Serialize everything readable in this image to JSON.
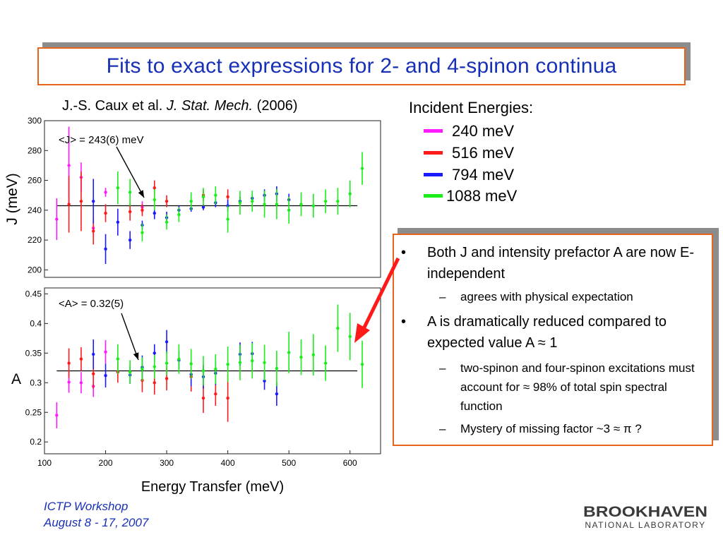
{
  "slide": {
    "title": "Fits to exact expressions for 2- and 4-spinon continua",
    "citation_authors": "J.-S. Caux et al.",
    "citation_journal": "J. Stat. Mech.",
    "citation_year": "(2006)",
    "footer_line1": "ICTP Workshop",
    "footer_line2": "August 8 - 17, 2007",
    "logo_top": "BROOKHAVEN",
    "logo_bottom": "NATIONAL LABORATORY"
  },
  "legend": {
    "title": "Incident Energies:",
    "items": [
      {
        "label": "240 meV",
        "color": "#ff19ff"
      },
      {
        "label": "516 meV",
        "color": "#ff1a1a"
      },
      {
        "label": "794 meV",
        "color": "#1a1aff"
      },
      {
        "label": "1088 meV",
        "color": "#19ee19"
      }
    ]
  },
  "bullets": [
    {
      "text": "Both J and intensity prefactor A are now E-independent",
      "sub": [
        "agrees with physical expectation"
      ]
    },
    {
      "text": "A is dramatically reduced compared to expected value A ≈ 1",
      "sub": [
        "two-spinon and four-spinon excitations must account for ≈ 98% of total spin spectral function",
        "Mystery of missing factor ~3 ≈ π ?"
      ]
    }
  ],
  "bullet_char": "•",
  "sub_char": "–",
  "chart_data": [
    {
      "type": "scatter",
      "title": "",
      "xlabel": "",
      "ylabel": "J (meV)",
      "xlim": [
        100,
        650
      ],
      "ylim": [
        195,
        300
      ],
      "yticks": [
        200,
        220,
        240,
        260,
        280,
        300
      ],
      "ytick_labels": [
        "200",
        "220",
        "240",
        "260",
        "280",
        "300"
      ],
      "fit_line": 243,
      "annotation": "<J> = 243(6) meV",
      "series": [
        {
          "color": "#ff19ff",
          "points": [
            [
              120,
              234,
              14
            ],
            [
              140,
              270,
              26
            ],
            [
              160,
              262,
              10
            ],
            [
              180,
              228,
              5
            ],
            [
              200,
              252,
              3
            ],
            [
              260,
              242,
              4
            ]
          ]
        },
        {
          "color": "#ff1a1a",
          "points": [
            [
              140,
              244,
              19
            ],
            [
              160,
              246,
              20
            ],
            [
              180,
              226,
              9
            ],
            [
              200,
              238,
              6
            ],
            [
              240,
              239,
              6
            ],
            [
              260,
              240,
              4
            ],
            [
              280,
              255,
              5
            ],
            [
              300,
              246,
              4
            ],
            [
              360,
              250,
              4
            ],
            [
              400,
              249,
              5
            ]
          ]
        },
        {
          "color": "#1a1aff",
          "points": [
            [
              180,
              246,
              15
            ],
            [
              200,
              214,
              10
            ],
            [
              220,
              232,
              9
            ],
            [
              240,
              220,
              6
            ],
            [
              260,
              230,
              3
            ],
            [
              280,
              238,
              4
            ],
            [
              300,
              235,
              4
            ],
            [
              320,
              240,
              3
            ],
            [
              340,
              241,
              2
            ],
            [
              360,
              242,
              2
            ],
            [
              380,
              245,
              3
            ],
            [
              400,
              243,
              4
            ],
            [
              420,
              246,
              3
            ],
            [
              440,
              248,
              3
            ],
            [
              460,
              250,
              4
            ],
            [
              480,
              251,
              5
            ],
            [
              500,
              247,
              4
            ]
          ]
        },
        {
          "color": "#19ee19",
          "points": [
            [
              220,
              255,
              11
            ],
            [
              240,
              252,
              9
            ],
            [
              260,
              225,
              6
            ],
            [
              280,
              247,
              7
            ],
            [
              300,
              232,
              5
            ],
            [
              320,
              237,
              5
            ],
            [
              340,
              246,
              6
            ],
            [
              360,
              249,
              6
            ],
            [
              380,
              250,
              6
            ],
            [
              400,
              234,
              9
            ],
            [
              420,
              245,
              8
            ],
            [
              440,
              246,
              7
            ],
            [
              460,
              244,
              9
            ],
            [
              480,
              244,
              10
            ],
            [
              500,
              240,
              9
            ],
            [
              520,
              244,
              8
            ],
            [
              540,
              243,
              8
            ],
            [
              560,
              246,
              8
            ],
            [
              580,
              246,
              9
            ],
            [
              600,
              251,
              9
            ],
            [
              620,
              268,
              11
            ]
          ]
        }
      ]
    },
    {
      "type": "scatter",
      "title": "",
      "xlabel": "Energy Transfer (meV)",
      "ylabel": "A",
      "xlim": [
        100,
        650
      ],
      "ylim": [
        0.18,
        0.46
      ],
      "xticks": [
        100,
        200,
        300,
        400,
        500,
        600
      ],
      "xtick_labels": [
        "100",
        "200",
        "300",
        "400",
        "500",
        "600"
      ],
      "yticks": [
        0.2,
        0.25,
        0.3,
        0.35,
        0.4,
        0.45
      ],
      "ytick_labels": [
        "0.2",
        "0.25",
        "0.3",
        "0.35",
        "0.4",
        "0.45"
      ],
      "fit_line": 0.32,
      "annotation": "<A> = 0.32(5)",
      "series": [
        {
          "color": "#ff19ff",
          "points": [
            [
              120,
              0.245,
              0.022
            ],
            [
              140,
              0.301,
              0.018
            ],
            [
              160,
              0.3,
              0.018
            ],
            [
              180,
              0.294,
              0.018
            ],
            [
              200,
              0.352,
              0.02
            ]
          ]
        },
        {
          "color": "#ff1a1a",
          "points": [
            [
              140,
              0.333,
              0.025
            ],
            [
              160,
              0.34,
              0.02
            ],
            [
              180,
              0.315,
              0.025
            ],
            [
              220,
              0.318,
              0.018
            ],
            [
              260,
              0.304,
              0.02
            ],
            [
              280,
              0.3,
              0.02
            ],
            [
              300,
              0.307,
              0.02
            ],
            [
              340,
              0.31,
              0.025
            ],
            [
              360,
              0.274,
              0.025
            ],
            [
              380,
              0.281,
              0.02
            ],
            [
              400,
              0.274,
              0.04
            ]
          ]
        },
        {
          "color": "#1a1aff",
          "points": [
            [
              180,
              0.348,
              0.025
            ],
            [
              200,
              0.312,
              0.02
            ],
            [
              240,
              0.313,
              0.015
            ],
            [
              260,
              0.326,
              0.02
            ],
            [
              280,
              0.35,
              0.015
            ],
            [
              300,
              0.369,
              0.02
            ],
            [
              320,
              0.338,
              0.015
            ],
            [
              340,
              0.314,
              0.02
            ],
            [
              360,
              0.31,
              0.02
            ],
            [
              380,
              0.316,
              0.02
            ],
            [
              420,
              0.348,
              0.02
            ],
            [
              440,
              0.349,
              0.02
            ],
            [
              460,
              0.303,
              0.015
            ],
            [
              480,
              0.281,
              0.02
            ]
          ]
        },
        {
          "color": "#19ee19",
          "points": [
            [
              220,
              0.34,
              0.025
            ],
            [
              240,
              0.318,
              0.02
            ],
            [
              260,
              0.323,
              0.02
            ],
            [
              280,
              0.327,
              0.02
            ],
            [
              300,
              0.333,
              0.02
            ],
            [
              320,
              0.34,
              0.025
            ],
            [
              340,
              0.332,
              0.025
            ],
            [
              360,
              0.32,
              0.025
            ],
            [
              380,
              0.323,
              0.025
            ],
            [
              400,
              0.331,
              0.03
            ],
            [
              420,
              0.334,
              0.03
            ],
            [
              440,
              0.337,
              0.03
            ],
            [
              460,
              0.334,
              0.03
            ],
            [
              480,
              0.324,
              0.03
            ],
            [
              500,
              0.351,
              0.035
            ],
            [
              520,
              0.343,
              0.03
            ],
            [
              540,
              0.347,
              0.035
            ],
            [
              560,
              0.333,
              0.03
            ],
            [
              580,
              0.392,
              0.04
            ],
            [
              600,
              0.378,
              0.04
            ],
            [
              620,
              0.331,
              0.04
            ]
          ]
        }
      ]
    }
  ]
}
